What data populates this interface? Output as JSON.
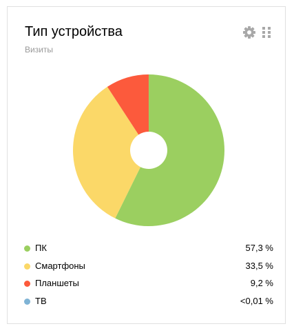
{
  "widget": {
    "title": "Тип устройства",
    "subtitle": "Визиты",
    "settings_icon": "gear-icon",
    "drag_icon": "drag-handle-icon"
  },
  "chart_data": {
    "type": "pie",
    "donut": true,
    "start": "top-clockwise",
    "categories": [
      "ПК",
      "Смартфоны",
      "Планшеты",
      "ТВ"
    ],
    "values": [
      57.3,
      33.5,
      9.2,
      0.005
    ],
    "labels": [
      "57,3 %",
      "33,5 %",
      "9,2 %",
      "<0,01 %"
    ],
    "colors": [
      "#9bcf60",
      "#fbd868",
      "#fc5a3c",
      "#7fb3d5"
    ],
    "legend": "bottom"
  }
}
